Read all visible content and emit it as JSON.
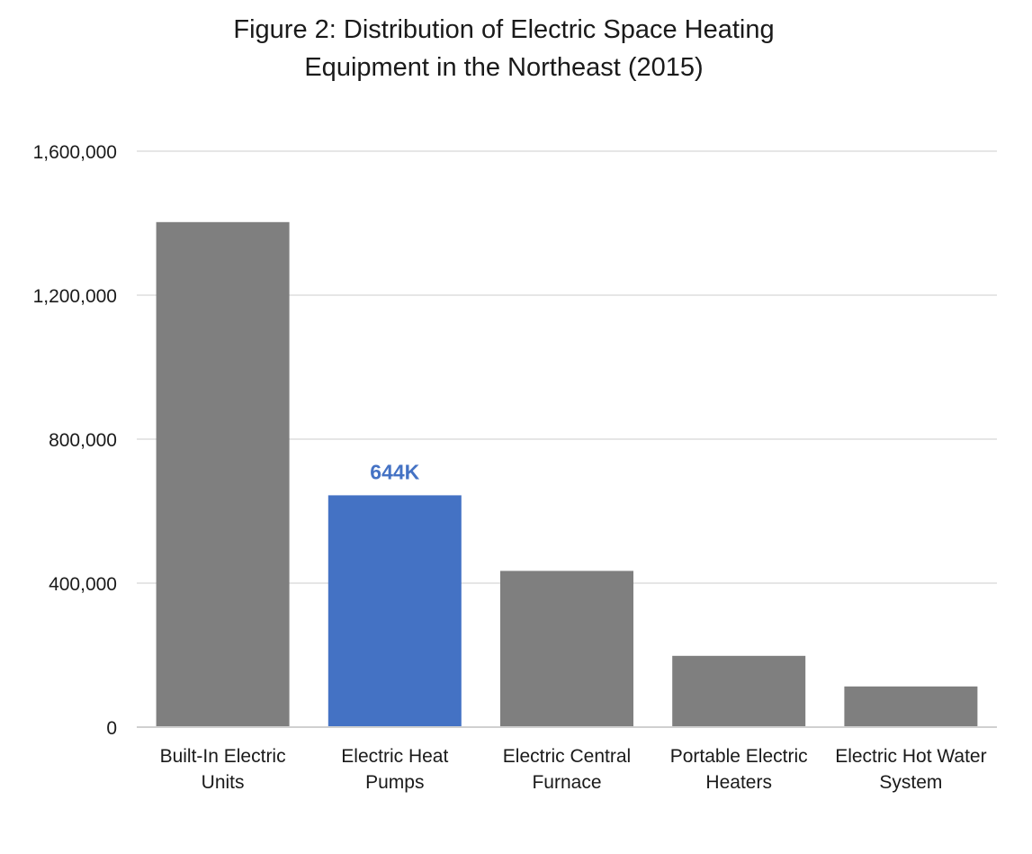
{
  "chart_data": {
    "type": "bar",
    "title_lines": [
      "Figure 2: Distribution of Electric Space Heating",
      "Equipment in the Northeast (2015)"
    ],
    "categories": [
      [
        "Built-In Electric",
        "Units"
      ],
      [
        "Electric Heat",
        "Pumps"
      ],
      [
        "Electric Central",
        "Furnace"
      ],
      [
        "Portable Electric",
        "Heaters"
      ],
      [
        "Electric Hot Water",
        "System"
      ]
    ],
    "values": [
      1403000,
      644000,
      434000,
      198000,
      113000
    ],
    "highlight_index": 1,
    "data_labels": [
      null,
      "644K",
      null,
      null,
      null
    ],
    "colors": {
      "default_bar": "#7f7f7f",
      "highlight_bar": "#4472c4",
      "highlight_label": "#4472c4"
    },
    "ylim": [
      0,
      1600000
    ],
    "yticks": [
      0,
      400000,
      800000,
      1200000,
      1600000
    ],
    "ytick_labels": [
      "0",
      "400,000",
      "800,000",
      "1,200,000",
      "1,600,000"
    ],
    "grid": true,
    "xlabel": "",
    "ylabel": ""
  }
}
